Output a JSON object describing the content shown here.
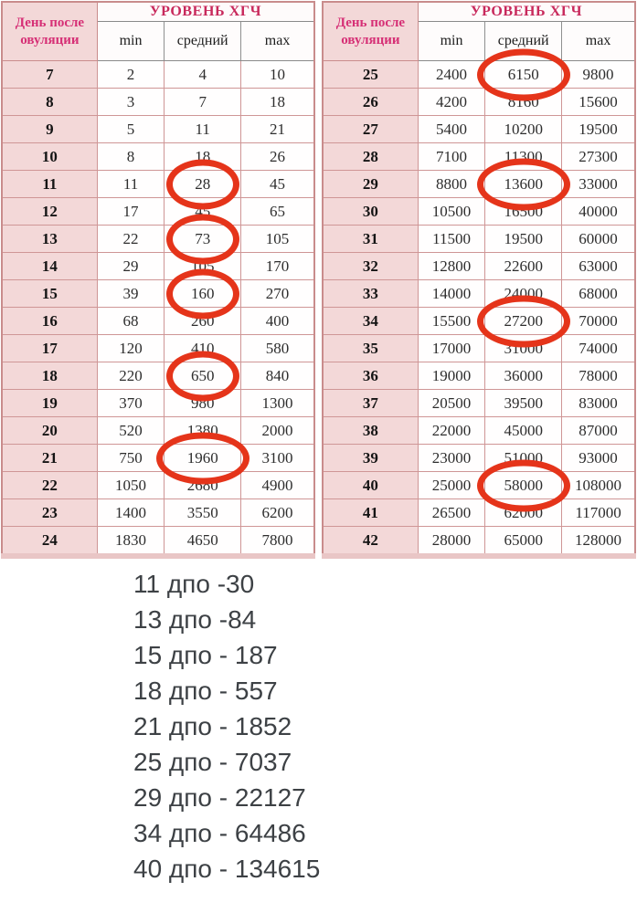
{
  "tables": [
    {
      "day_header": "День после овуляции",
      "level_header": "УРОВЕНЬ ХГЧ",
      "columns": [
        "min",
        "средний",
        "max"
      ],
      "rows": [
        {
          "day": "7",
          "min": "2",
          "avg": "4",
          "max": "10",
          "circled": false
        },
        {
          "day": "8",
          "min": "3",
          "avg": "7",
          "max": "18",
          "circled": false
        },
        {
          "day": "9",
          "min": "5",
          "avg": "11",
          "max": "21",
          "circled": false
        },
        {
          "day": "10",
          "min": "8",
          "avg": "18",
          "max": "26",
          "circled": false
        },
        {
          "day": "11",
          "min": "11",
          "avg": "28",
          "max": "45",
          "circled": true
        },
        {
          "day": "12",
          "min": "17",
          "avg": "45",
          "max": "65",
          "circled": false
        },
        {
          "day": "13",
          "min": "22",
          "avg": "73",
          "max": "105",
          "circled": true
        },
        {
          "day": "14",
          "min": "29",
          "avg": "105",
          "max": "170",
          "circled": false
        },
        {
          "day": "15",
          "min": "39",
          "avg": "160",
          "max": "270",
          "circled": true
        },
        {
          "day": "16",
          "min": "68",
          "avg": "260",
          "max": "400",
          "circled": false
        },
        {
          "day": "17",
          "min": "120",
          "avg": "410",
          "max": "580",
          "circled": false
        },
        {
          "day": "18",
          "min": "220",
          "avg": "650",
          "max": "840",
          "circled": true
        },
        {
          "day": "19",
          "min": "370",
          "avg": "980",
          "max": "1300",
          "circled": false
        },
        {
          "day": "20",
          "min": "520",
          "avg": "1380",
          "max": "2000",
          "circled": false
        },
        {
          "day": "21",
          "min": "750",
          "avg": "1960",
          "max": "3100",
          "circled": true
        },
        {
          "day": "22",
          "min": "1050",
          "avg": "2680",
          "max": "4900",
          "circled": false
        },
        {
          "day": "23",
          "min": "1400",
          "avg": "3550",
          "max": "6200",
          "circled": false
        },
        {
          "day": "24",
          "min": "1830",
          "avg": "4650",
          "max": "7800",
          "circled": false
        }
      ]
    },
    {
      "day_header": "День после овуляции",
      "level_header": "УРОВЕНЬ ХГЧ",
      "columns": [
        "min",
        "средний",
        "max"
      ],
      "rows": [
        {
          "day": "25",
          "min": "2400",
          "avg": "6150",
          "max": "9800",
          "circled": true
        },
        {
          "day": "26",
          "min": "4200",
          "avg": "8160",
          "max": "15600",
          "circled": false
        },
        {
          "day": "27",
          "min": "5400",
          "avg": "10200",
          "max": "19500",
          "circled": false
        },
        {
          "day": "28",
          "min": "7100",
          "avg": "11300",
          "max": "27300",
          "circled": false
        },
        {
          "day": "29",
          "min": "8800",
          "avg": "13600",
          "max": "33000",
          "circled": true
        },
        {
          "day": "30",
          "min": "10500",
          "avg": "16500",
          "max": "40000",
          "circled": false
        },
        {
          "day": "31",
          "min": "11500",
          "avg": "19500",
          "max": "60000",
          "circled": false
        },
        {
          "day": "32",
          "min": "12800",
          "avg": "22600",
          "max": "63000",
          "circled": false
        },
        {
          "day": "33",
          "min": "14000",
          "avg": "24000",
          "max": "68000",
          "circled": false
        },
        {
          "day": "34",
          "min": "15500",
          "avg": "27200",
          "max": "70000",
          "circled": true
        },
        {
          "day": "35",
          "min": "17000",
          "avg": "31000",
          "max": "74000",
          "circled": false
        },
        {
          "day": "36",
          "min": "19000",
          "avg": "36000",
          "max": "78000",
          "circled": false
        },
        {
          "day": "37",
          "min": "20500",
          "avg": "39500",
          "max": "83000",
          "circled": false
        },
        {
          "day": "38",
          "min": "22000",
          "avg": "45000",
          "max": "87000",
          "circled": false
        },
        {
          "day": "39",
          "min": "23000",
          "avg": "51000",
          "max": "93000",
          "circled": false
        },
        {
          "day": "40",
          "min": "25000",
          "avg": "58000",
          "max": "108000",
          "circled": true
        },
        {
          "day": "41",
          "min": "26500",
          "avg": "62000",
          "max": "117000",
          "circled": false
        },
        {
          "day": "42",
          "min": "28000",
          "avg": "65000",
          "max": "128000",
          "circled": false
        }
      ]
    }
  ],
  "notes": [
    "11 дпо -30",
    "13 дпо -84",
    "15 дпо - 187",
    "18 дпо - 557",
    "21 дпо - 1852",
    "25 дпо - 7037",
    "29 дпо - 22127",
    "34 дпо - 64486",
    "40 дпо - 134615"
  ],
  "colors": {
    "circle_red": "#e5341a",
    "level_header_crimson": "#c8295c",
    "day_header_magenta": "#d63076",
    "pink_cell": "#f3d8d8",
    "table_border": "#c98c8c",
    "notes_text": "#3d4145"
  }
}
